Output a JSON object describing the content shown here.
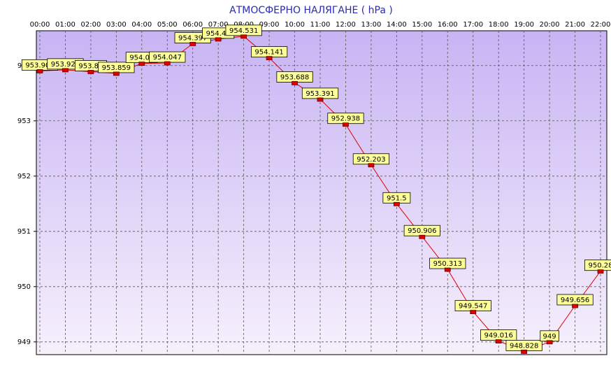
{
  "chart_data": {
    "type": "line",
    "title": "АТМОСФЕРНО НАЛЯГАНЕ  ( hPa )",
    "categories": [
      "00:00",
      "01:00",
      "02:00",
      "03:00",
      "04:00",
      "05:00",
      "06:00",
      "07:00",
      "08:00",
      "09:00",
      "10:00",
      "11:00",
      "12:00",
      "13:00",
      "14:00",
      "15:00",
      "16:00",
      "17:00",
      "18:00",
      "19:00",
      "20:00",
      "21:00",
      "22:00"
    ],
    "series": [
      {
        "name": "hPa",
        "color": "#e00000",
        "values": [
          953.904,
          953.923,
          953.89,
          953.859,
          954.04,
          954.047,
          954.397,
          954.48,
          954.531,
          954.141,
          953.688,
          953.391,
          952.938,
          952.203,
          951.5,
          950.906,
          950.313,
          949.547,
          949.016,
          948.828,
          949,
          949.656,
          950.28
        ]
      }
    ],
    "ylim": [
      948.77,
      954.63
    ],
    "yticks": [
      949,
      950,
      951,
      952,
      953,
      954
    ],
    "grid": true
  }
}
